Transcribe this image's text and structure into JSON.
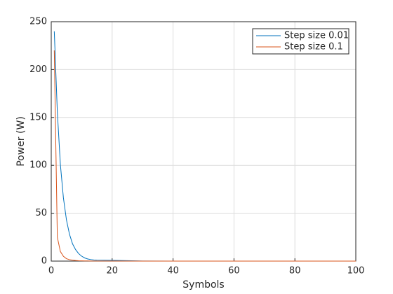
{
  "chart_data": {
    "type": "line",
    "x_label": "Symbols",
    "y_label": "Power (W)",
    "x": [
      1,
      2,
      3,
      4,
      5,
      6,
      7,
      8,
      9,
      10,
      11,
      12,
      13,
      14,
      15,
      20,
      30,
      40,
      50,
      60,
      70,
      80,
      90,
      100
    ],
    "series": [
      {
        "name": "Step size 0.01",
        "color": "#0072bd",
        "values": [
          240,
          156,
          101,
          66,
          43,
          28,
          18,
          12,
          7.8,
          5.1,
          3.3,
          2.2,
          1.6,
          1.2,
          1,
          0.8,
          0.1,
          0,
          0,
          0,
          0,
          0,
          0,
          0
        ]
      },
      {
        "name": "Step size 0.1",
        "color": "#d95319",
        "values": [
          220,
          25,
          10,
          5,
          2.5,
          1.5,
          1,
          0.6,
          0.4,
          0.3,
          0.2,
          0.2,
          0.1,
          0.1,
          0.1,
          0.1,
          0,
          0,
          0,
          0,
          0,
          0,
          0,
          0
        ]
      }
    ],
    "xlim": [
      0,
      100
    ],
    "xticks": [
      0,
      20,
      40,
      60,
      80,
      100
    ],
    "ylim": [
      0,
      250
    ],
    "yticks": [
      0,
      50,
      100,
      150,
      200,
      250
    ],
    "grid": true,
    "legend": "northeast"
  }
}
